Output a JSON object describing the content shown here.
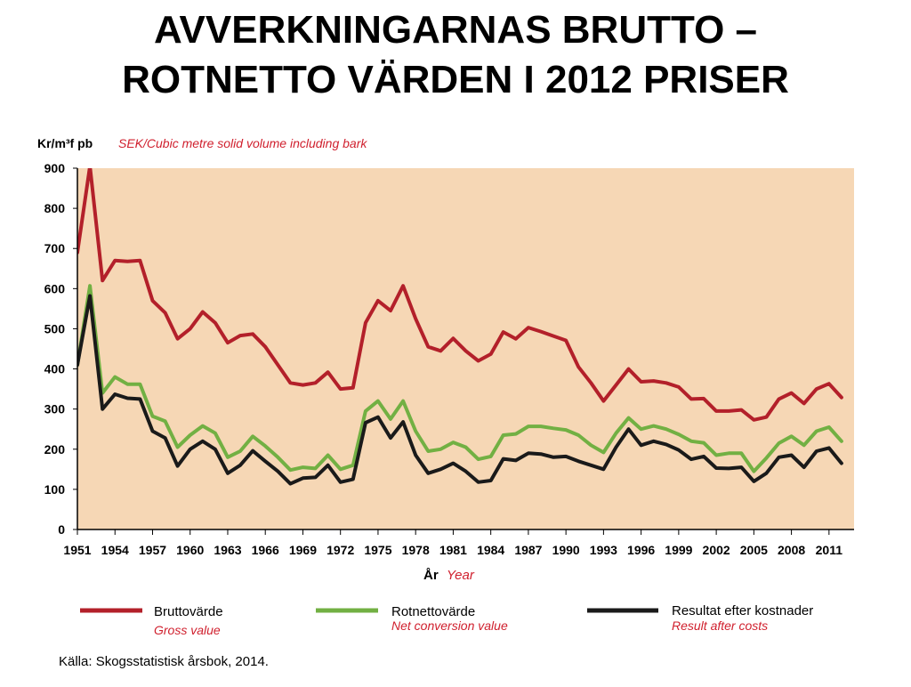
{
  "title_lines": [
    "AVVERKNINGARNAS BRUTTO –",
    "ROTNETTO VÄRDEN I 2012 PRISER"
  ],
  "source": "Källa:  Skogsstatistisk årsbok, 2014.",
  "colors": {
    "background": "#F6D7B5",
    "brutto": "#B3202A",
    "rotnetto": "#72B043",
    "resultat": "#1A1A1A",
    "accent_text": "#D0202E"
  },
  "chart_data": {
    "type": "line",
    "unit_label": "Kr/m³f pb",
    "unit_label_en": "SEK/Cubic metre solid volume including bark",
    "xlabel": "År",
    "xlabel_en": "Year",
    "ylim": [
      0,
      900
    ],
    "xlim": [
      1951,
      2013
    ],
    "y_ticks": [
      0,
      100,
      200,
      300,
      400,
      500,
      600,
      700,
      800,
      900
    ],
    "x_ticks": [
      1951,
      1954,
      1957,
      1960,
      1963,
      1966,
      1969,
      1972,
      1975,
      1978,
      1981,
      1984,
      1987,
      1990,
      1993,
      1996,
      1999,
      2002,
      2005,
      2008,
      2011
    ],
    "grid": false,
    "legend_position": "bottom",
    "x": [
      1951,
      1952,
      1953,
      1954,
      1955,
      1956,
      1957,
      1958,
      1959,
      1960,
      1961,
      1962,
      1963,
      1964,
      1965,
      1966,
      1967,
      1968,
      1969,
      1970,
      1971,
      1972,
      1973,
      1974,
      1975,
      1976,
      1977,
      1978,
      1979,
      1980,
      1981,
      1982,
      1983,
      1984,
      1985,
      1986,
      1987,
      1988,
      1989,
      1990,
      1991,
      1992,
      1993,
      1994,
      1995,
      1996,
      1997,
      1998,
      1999,
      2000,
      2001,
      2002,
      2003,
      2004,
      2005,
      2006,
      2007,
      2008,
      2009,
      2010,
      2011,
      2012
    ],
    "series": [
      {
        "name": "Bruttovärde",
        "name_en": "Gross value",
        "values": [
          690,
          905,
          620,
          670,
          668,
          670,
          570,
          540,
          475,
          500,
          542,
          515,
          465,
          483,
          487,
          455,
          410,
          365,
          360,
          365,
          392,
          350,
          353,
          515,
          570,
          545,
          607,
          525,
          455,
          445,
          476,
          445,
          420,
          437,
          492,
          475,
          503,
          493,
          482,
          471,
          405,
          365,
          320,
          360,
          400,
          368,
          370,
          365,
          355,
          325,
          326,
          295,
          295,
          298,
          273,
          280,
          325,
          340,
          314,
          350,
          363,
          329
        ]
      },
      {
        "name": "Rotnettovärde",
        "name_en": "Net conversion value",
        "values": [
          410,
          607,
          340,
          380,
          362,
          362,
          282,
          270,
          205,
          235,
          258,
          240,
          180,
          195,
          232,
          208,
          180,
          148,
          155,
          152,
          185,
          150,
          160,
          295,
          320,
          275,
          320,
          245,
          195,
          200,
          217,
          205,
          175,
          182,
          235,
          238,
          257,
          257,
          252,
          248,
          235,
          210,
          192,
          240,
          278,
          250,
          258,
          250,
          237,
          220,
          216,
          185,
          190,
          190,
          145,
          178,
          215,
          232,
          210,
          245,
          255,
          220
        ]
      },
      {
        "name": "Resultat efter kostnader",
        "name_en": "Result after costs",
        "values": [
          410,
          582,
          300,
          337,
          327,
          325,
          245,
          228,
          158,
          200,
          220,
          200,
          140,
          160,
          196,
          170,
          145,
          114,
          128,
          130,
          160,
          118,
          125,
          266,
          280,
          228,
          268,
          185,
          140,
          150,
          165,
          145,
          118,
          122,
          176,
          172,
          190,
          188,
          180,
          182,
          170,
          160,
          150,
          205,
          250,
          210,
          220,
          212,
          198,
          175,
          182,
          153,
          152,
          155,
          120,
          140,
          180,
          185,
          155,
          195,
          203,
          165
        ]
      }
    ]
  }
}
